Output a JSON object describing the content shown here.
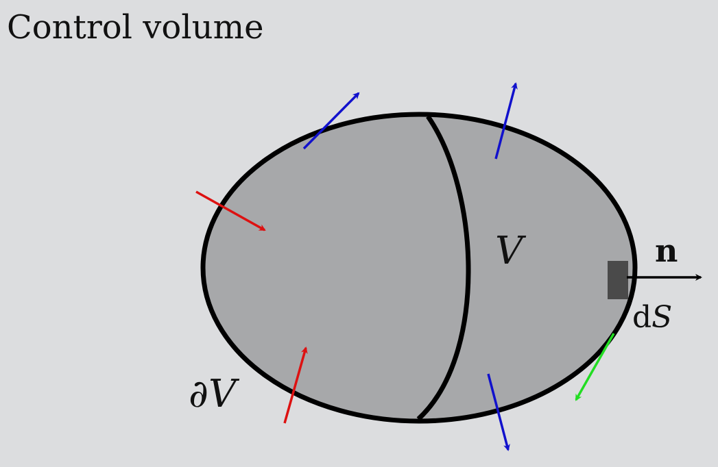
{
  "title": "Control volume",
  "labels": {
    "volume": "V",
    "boundary_partial": "∂",
    "boundary_var": "V",
    "normal": "n",
    "surface_element_d": "d",
    "surface_element_var": "S"
  },
  "colors": {
    "background": "#dcdddf",
    "volume_fill": "#a7a8aa",
    "outline": "#000000",
    "surface_element": "#4a4a4a",
    "outflow_arrow": "#1111cc",
    "inflow_arrow": "#dd1111",
    "tangent_arrow": "#22dd22",
    "normal_arrow": "#000000"
  },
  "icons": {
    "outflow": "arrow-blue",
    "inflow": "arrow-red",
    "tangent": "arrow-green",
    "normal": "arrow-black"
  }
}
